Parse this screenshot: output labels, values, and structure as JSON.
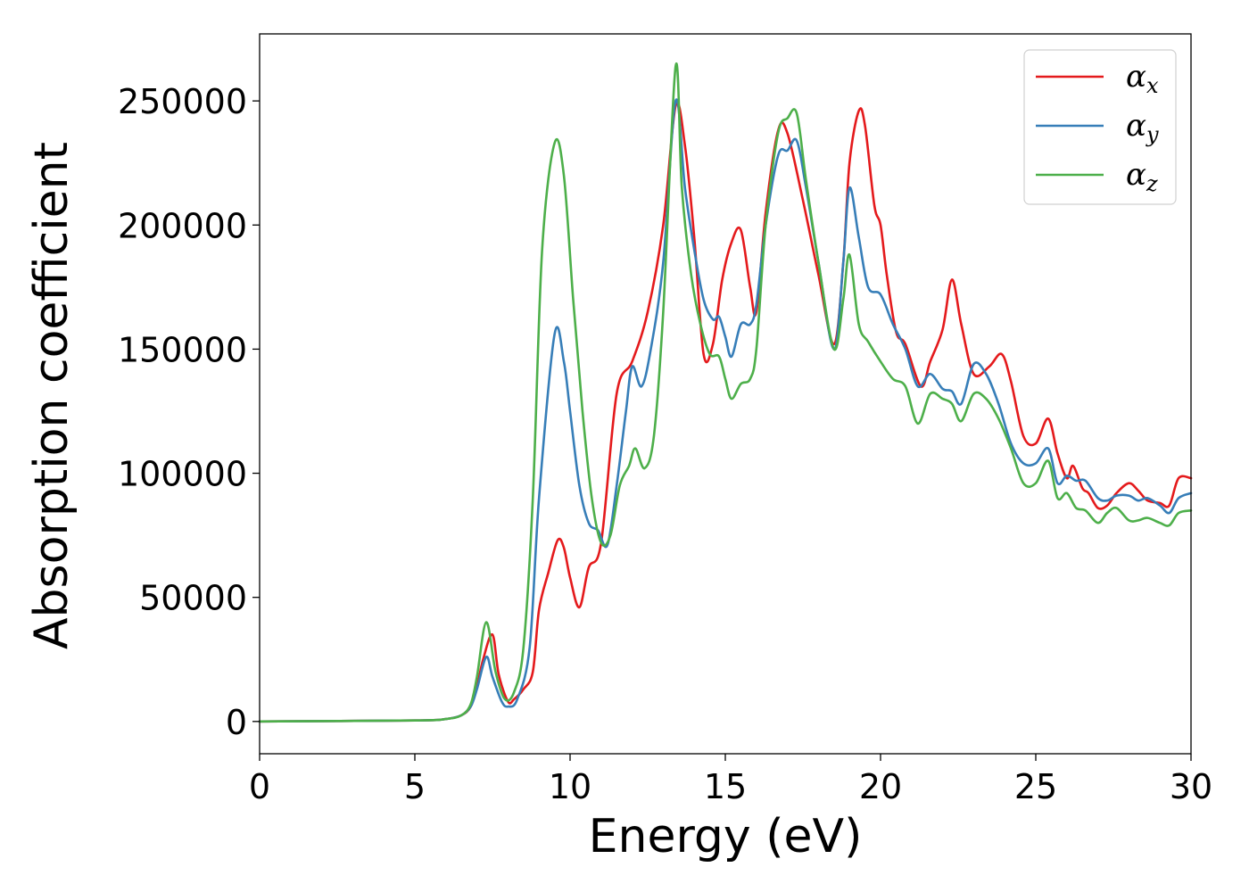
{
  "chart_data": {
    "type": "line",
    "title": "",
    "xlabel": "Energy (eV)",
    "ylabel": "Absorption coefficient",
    "xlim": [
      0,
      30
    ],
    "ylim": [
      -13000,
      277000
    ],
    "xticks": [
      0,
      5,
      10,
      15,
      20,
      25,
      30
    ],
    "yticks": [
      0,
      50000,
      100000,
      150000,
      200000,
      250000
    ],
    "grid": false,
    "legend_position": "top-right",
    "series": [
      {
        "name": "α",
        "sub": "x",
        "color": "#e41a1c",
        "x": [
          0,
          5,
          6,
          6.5,
          6.8,
          7.0,
          7.2,
          7.5,
          7.7,
          8.0,
          8.2,
          8.5,
          8.8,
          9.0,
          9.3,
          9.6,
          9.8,
          10.0,
          10.3,
          10.6,
          11.0,
          11.5,
          12.0,
          12.5,
          13.0,
          13.4,
          13.7,
          14.0,
          14.3,
          14.6,
          14.9,
          15.2,
          15.5,
          15.8,
          16.0,
          16.3,
          16.7,
          17.0,
          17.5,
          18.0,
          18.5,
          18.8,
          19.0,
          19.3,
          19.5,
          19.8,
          20.0,
          20.2,
          20.5,
          20.8,
          21.3,
          21.6,
          22.0,
          22.3,
          22.6,
          23.0,
          23.5,
          23.9,
          24.2,
          24.6,
          25.0,
          25.4,
          25.7,
          26.0,
          26.2,
          26.5,
          26.7,
          27.0,
          27.3,
          27.6,
          28.0,
          28.3,
          28.6,
          29.0,
          29.3,
          29.6,
          30
        ],
        "y": [
          0,
          400,
          1000,
          2500,
          6000,
          14000,
          25000,
          35000,
          19000,
          8000,
          9000,
          13000,
          20000,
          45000,
          60000,
          73000,
          70000,
          58000,
          46000,
          62000,
          72000,
          132000,
          145000,
          165000,
          200000,
          248000,
          232000,
          195000,
          148000,
          152000,
          178000,
          193000,
          198000,
          175000,
          165000,
          205000,
          238000,
          237000,
          210000,
          180000,
          152000,
          185000,
          225000,
          246000,
          240000,
          208000,
          200000,
          180000,
          157000,
          152000,
          135000,
          145000,
          158000,
          178000,
          160000,
          140000,
          143000,
          148000,
          137000,
          115000,
          112000,
          122000,
          108000,
          98000,
          103000,
          94000,
          92000,
          86000,
          87000,
          92000,
          96000,
          93000,
          89000,
          88000,
          87000,
          98000,
          98000
        ]
      },
      {
        "name": "α",
        "sub": "y",
        "color": "#377eb8",
        "x": [
          0,
          5,
          6,
          6.5,
          6.8,
          7.0,
          7.3,
          7.5,
          7.8,
          8.0,
          8.3,
          8.7,
          9.0,
          9.5,
          9.8,
          10.0,
          10.3,
          10.6,
          10.9,
          11.2,
          11.5,
          11.8,
          12.0,
          12.3,
          12.6,
          13.0,
          13.4,
          13.7,
          14.0,
          14.3,
          14.6,
          14.8,
          15.0,
          15.2,
          15.5,
          15.8,
          16.0,
          16.3,
          16.7,
          17.0,
          17.3,
          17.6,
          18.0,
          18.5,
          18.8,
          19.0,
          19.3,
          19.6,
          20.0,
          20.4,
          20.8,
          21.2,
          21.6,
          22.0,
          22.3,
          22.6,
          23.0,
          23.4,
          23.8,
          24.2,
          24.6,
          25.0,
          25.4,
          25.7,
          26.0,
          26.3,
          26.6,
          27.0,
          27.3,
          27.6,
          28.0,
          28.3,
          28.6,
          29.0,
          29.3,
          29.6,
          30
        ],
        "y": [
          0,
          400,
          1000,
          2500,
          6000,
          13000,
          26000,
          18000,
          8000,
          6000,
          9000,
          30000,
          90000,
          156000,
          145000,
          125000,
          95000,
          80000,
          77000,
          71000,
          95000,
          125000,
          143000,
          135000,
          150000,
          185000,
          250000,
          215000,
          190000,
          170000,
          162000,
          163000,
          155000,
          147000,
          160000,
          160000,
          168000,
          200000,
          228000,
          230000,
          234000,
          215000,
          185000,
          150000,
          185000,
          215000,
          195000,
          175000,
          172000,
          160000,
          150000,
          135000,
          140000,
          134000,
          133000,
          128000,
          144000,
          140000,
          128000,
          112000,
          104000,
          104000,
          110000,
          96000,
          99000,
          97000,
          97000,
          90000,
          89000,
          91000,
          91000,
          89000,
          90000,
          87000,
          84000,
          90000,
          92000
        ]
      },
      {
        "name": "α",
        "sub": "z",
        "color": "#4daf4a",
        "x": [
          0,
          5,
          6,
          6.5,
          6.8,
          7.0,
          7.3,
          7.6,
          7.9,
          8.2,
          8.5,
          8.8,
          9.1,
          9.5,
          9.8,
          10.1,
          10.4,
          10.7,
          11.0,
          11.3,
          11.6,
          11.9,
          12.1,
          12.4,
          12.7,
          13.0,
          13.4,
          13.6,
          13.9,
          14.2,
          14.5,
          14.8,
          15.0,
          15.2,
          15.5,
          15.8,
          16.0,
          16.3,
          16.7,
          17.0,
          17.3,
          17.6,
          18.0,
          18.5,
          18.8,
          19.0,
          19.3,
          19.6,
          20.0,
          20.4,
          20.8,
          21.2,
          21.6,
          22.0,
          22.3,
          22.6,
          23.0,
          23.4,
          23.8,
          24.2,
          24.6,
          25.0,
          25.4,
          25.7,
          26.0,
          26.3,
          26.6,
          27.0,
          27.3,
          27.6,
          28.0,
          28.3,
          28.6,
          29.0,
          29.3,
          29.6,
          30
        ],
        "y": [
          0,
          400,
          1000,
          2500,
          7000,
          18000,
          40000,
          20000,
          9000,
          12000,
          30000,
          90000,
          190000,
          233000,
          220000,
          170000,
          125000,
          90000,
          72000,
          75000,
          95000,
          103000,
          110000,
          102000,
          115000,
          165000,
          264000,
          215000,
          180000,
          160000,
          148000,
          147000,
          138000,
          130000,
          136000,
          138000,
          150000,
          200000,
          237000,
          243000,
          245000,
          218000,
          185000,
          150000,
          170000,
          188000,
          160000,
          153000,
          145000,
          138000,
          135000,
          120000,
          132000,
          130000,
          128000,
          121000,
          132000,
          130000,
          122000,
          110000,
          96000,
          96000,
          105000,
          90000,
          92000,
          86000,
          85000,
          80000,
          84000,
          86000,
          81000,
          81000,
          82000,
          80000,
          79000,
          84000,
          85000
        ]
      }
    ]
  }
}
